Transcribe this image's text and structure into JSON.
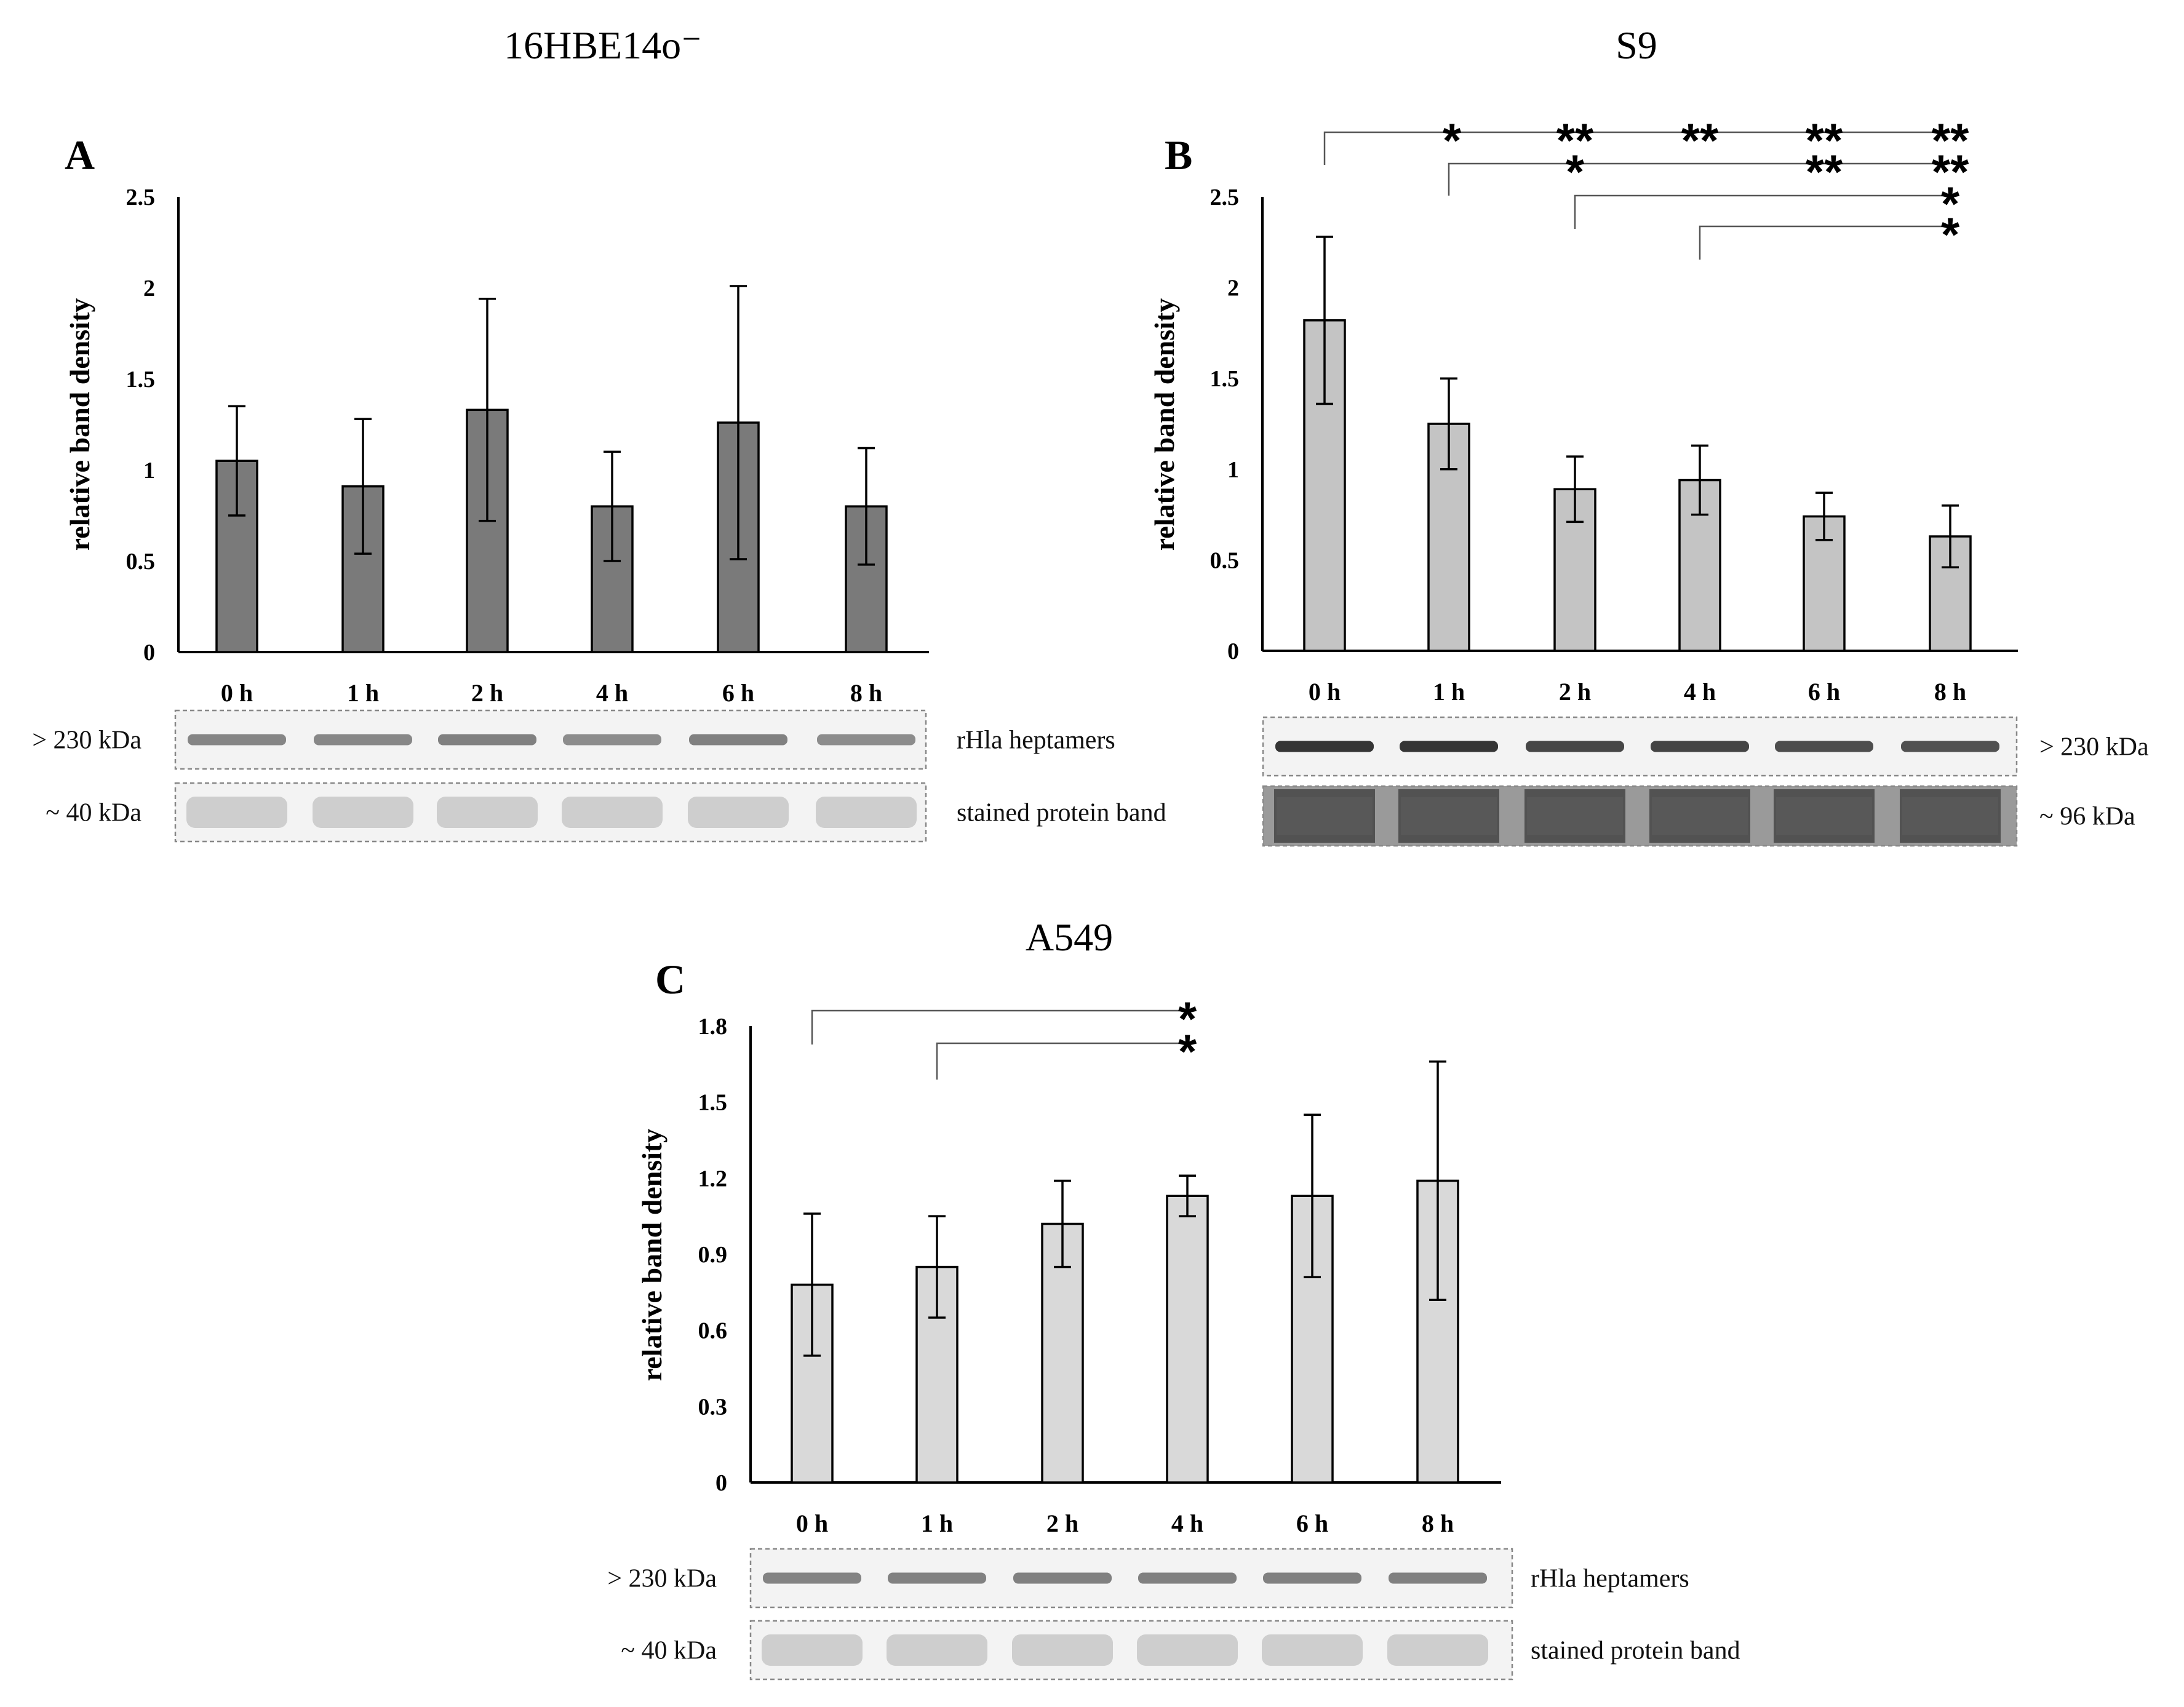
{
  "figure": {
    "panels": [
      {
        "letter": "A",
        "title": "16HBE14o⁻",
        "bar_color": "#7a7a7a"
      },
      {
        "letter": "B",
        "title": "S9",
        "bar_color": "#c4c4c4"
      },
      {
        "letter": "C",
        "title": "A549",
        "bar_color": "#d9d9d9"
      }
    ]
  },
  "chart_data": [
    {
      "type": "bar",
      "panel": "A",
      "title": "16HBE14o⁻",
      "xlabel": "",
      "ylabel": "relative band density",
      "categories": [
        "0 h",
        "1 h",
        "2 h",
        "4 h",
        "6 h",
        "8 h"
      ],
      "values": [
        1.05,
        0.91,
        1.33,
        0.8,
        1.26,
        0.8
      ],
      "errors": [
        0.3,
        0.37,
        0.61,
        0.3,
        0.75,
        0.32
      ],
      "ylim": [
        0,
        2.5
      ],
      "yticks": [
        "0",
        "0.5",
        "1",
        "1.5",
        "2",
        "2.5"
      ],
      "grid": false,
      "significance": [],
      "blot_labels": {
        "row1_left": "> 230 kDa",
        "row1_right": "rHla heptamers",
        "row2_left": "~ 40 kDa",
        "row2_right": "stained protein band"
      }
    },
    {
      "type": "bar",
      "panel": "B",
      "title": "S9",
      "xlabel": "",
      "ylabel": "relative band density",
      "categories": [
        "0 h",
        "1 h",
        "2 h",
        "4 h",
        "6 h",
        "8 h"
      ],
      "values": [
        1.82,
        1.25,
        0.89,
        0.94,
        0.74,
        0.63
      ],
      "errors": [
        0.46,
        0.25,
        0.18,
        0.19,
        0.13,
        0.17
      ],
      "ylim": [
        0,
        2.5
      ],
      "yticks": [
        "0",
        "0.5",
        "1",
        "1.5",
        "2",
        "2.5"
      ],
      "grid": false,
      "significance": [
        {
          "from": "0 h",
          "stars": [
            "*",
            "**",
            "**",
            "**",
            "**"
          ]
        },
        {
          "from": "1 h",
          "stars": [
            "*",
            "**",
            "**"
          ]
        },
        {
          "from": "2 h",
          "stars": [
            "*"
          ]
        },
        {
          "from": "4 h",
          "stars": [
            "*"
          ]
        }
      ],
      "blot_labels": {
        "row1_left": "",
        "row1_right": "> 230 kDa",
        "row2_left": "",
        "row2_right": "~ 96 kDa"
      }
    },
    {
      "type": "bar",
      "panel": "C",
      "title": "A549",
      "xlabel": "",
      "ylabel": "relative band density",
      "categories": [
        "0 h",
        "1 h",
        "2 h",
        "4 h",
        "6 h",
        "8 h"
      ],
      "values": [
        0.78,
        0.85,
        1.02,
        1.13,
        1.13,
        1.19
      ],
      "errors": [
        0.28,
        0.2,
        0.17,
        0.08,
        0.32,
        0.47
      ],
      "ylim": [
        0,
        1.8
      ],
      "yticks": [
        "0",
        "0.3",
        "0.6",
        "0.9",
        "1.2",
        "1.5",
        "1.8"
      ],
      "grid": false,
      "significance": [
        {
          "from": "0 h",
          "to": "4 h",
          "stars": [
            "*"
          ]
        },
        {
          "from": "1 h",
          "to": "4 h",
          "stars": [
            "*"
          ]
        }
      ],
      "blot_labels": {
        "row1_left": "> 230 kDa",
        "row1_right": "rHla heptamers",
        "row2_left": "~ 40 kDa",
        "row2_right": "stained protein band"
      }
    }
  ]
}
